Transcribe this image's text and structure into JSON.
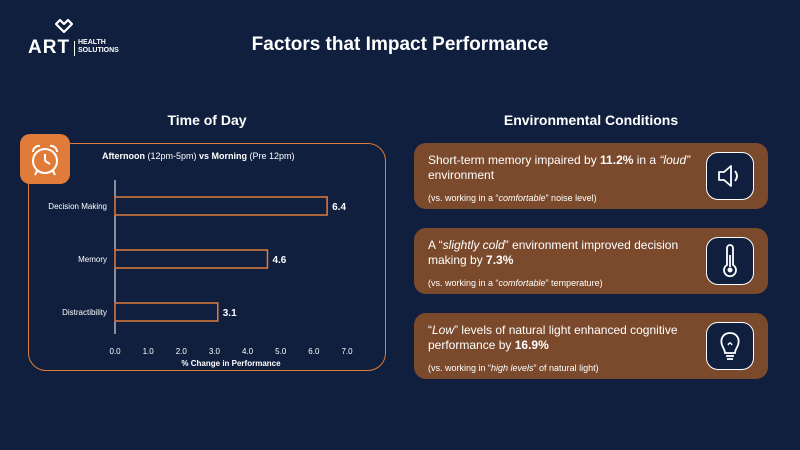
{
  "logo": {
    "brand": "ART",
    "tagline_1": "HEALTH",
    "tagline_2": "SOLUTIONS"
  },
  "title": "Factors that Impact Performance",
  "time_of_day": {
    "heading": "Time of Day",
    "sub_bold_1": "Afternoon",
    "sub_1": " (12pm-5pm) ",
    "sub_bold_2": "vs Morning",
    "sub_2": " (Pre 12pm)"
  },
  "environmental": {
    "heading": "Environmental Conditions",
    "cards": [
      {
        "pre": "Short-term memory impaired by ",
        "bold": "11.2%",
        "mid": " in a ",
        "ital": "“loud”",
        "post": " environment",
        "note_pre": "(vs. working in a “",
        "note_ital": "comfortable",
        "note_post": "” noise level)",
        "icon": "speaker-icon"
      },
      {
        "pre": "A “",
        "ital": "slightly cold",
        "mid": "” environment improved decision making by ",
        "bold": "7.3%",
        "post": "",
        "note_pre": "(vs. working in a “",
        "note_ital": "comfortable",
        "note_post": "” temperature)",
        "icon": "thermometer-icon"
      },
      {
        "pre": "“",
        "ital": "Low",
        "mid": "” levels of natural light enhanced cognitive performance by ",
        "bold": "16.9%",
        "post": "",
        "note_pre": "(vs. working in “",
        "note_ital": "high levels",
        "note_post": "” of natural light)",
        "icon": "lightbulb-icon"
      }
    ]
  },
  "colors": {
    "background": "#0f1f3d",
    "accent": "#e07b39",
    "card": "#7b4a2c"
  },
  "chart_data": {
    "type": "bar",
    "orientation": "horizontal",
    "categories": [
      "Decision Making",
      "Memory",
      "Distractibility"
    ],
    "values": [
      6.4,
      4.6,
      3.1
    ],
    "xlabel": "% Change in Performance",
    "xlim": [
      0,
      7
    ],
    "xticks": [
      "0.0",
      "1.0",
      "2.0",
      "3.0",
      "4.0",
      "5.0",
      "6.0",
      "7.0"
    ],
    "grid": false
  }
}
